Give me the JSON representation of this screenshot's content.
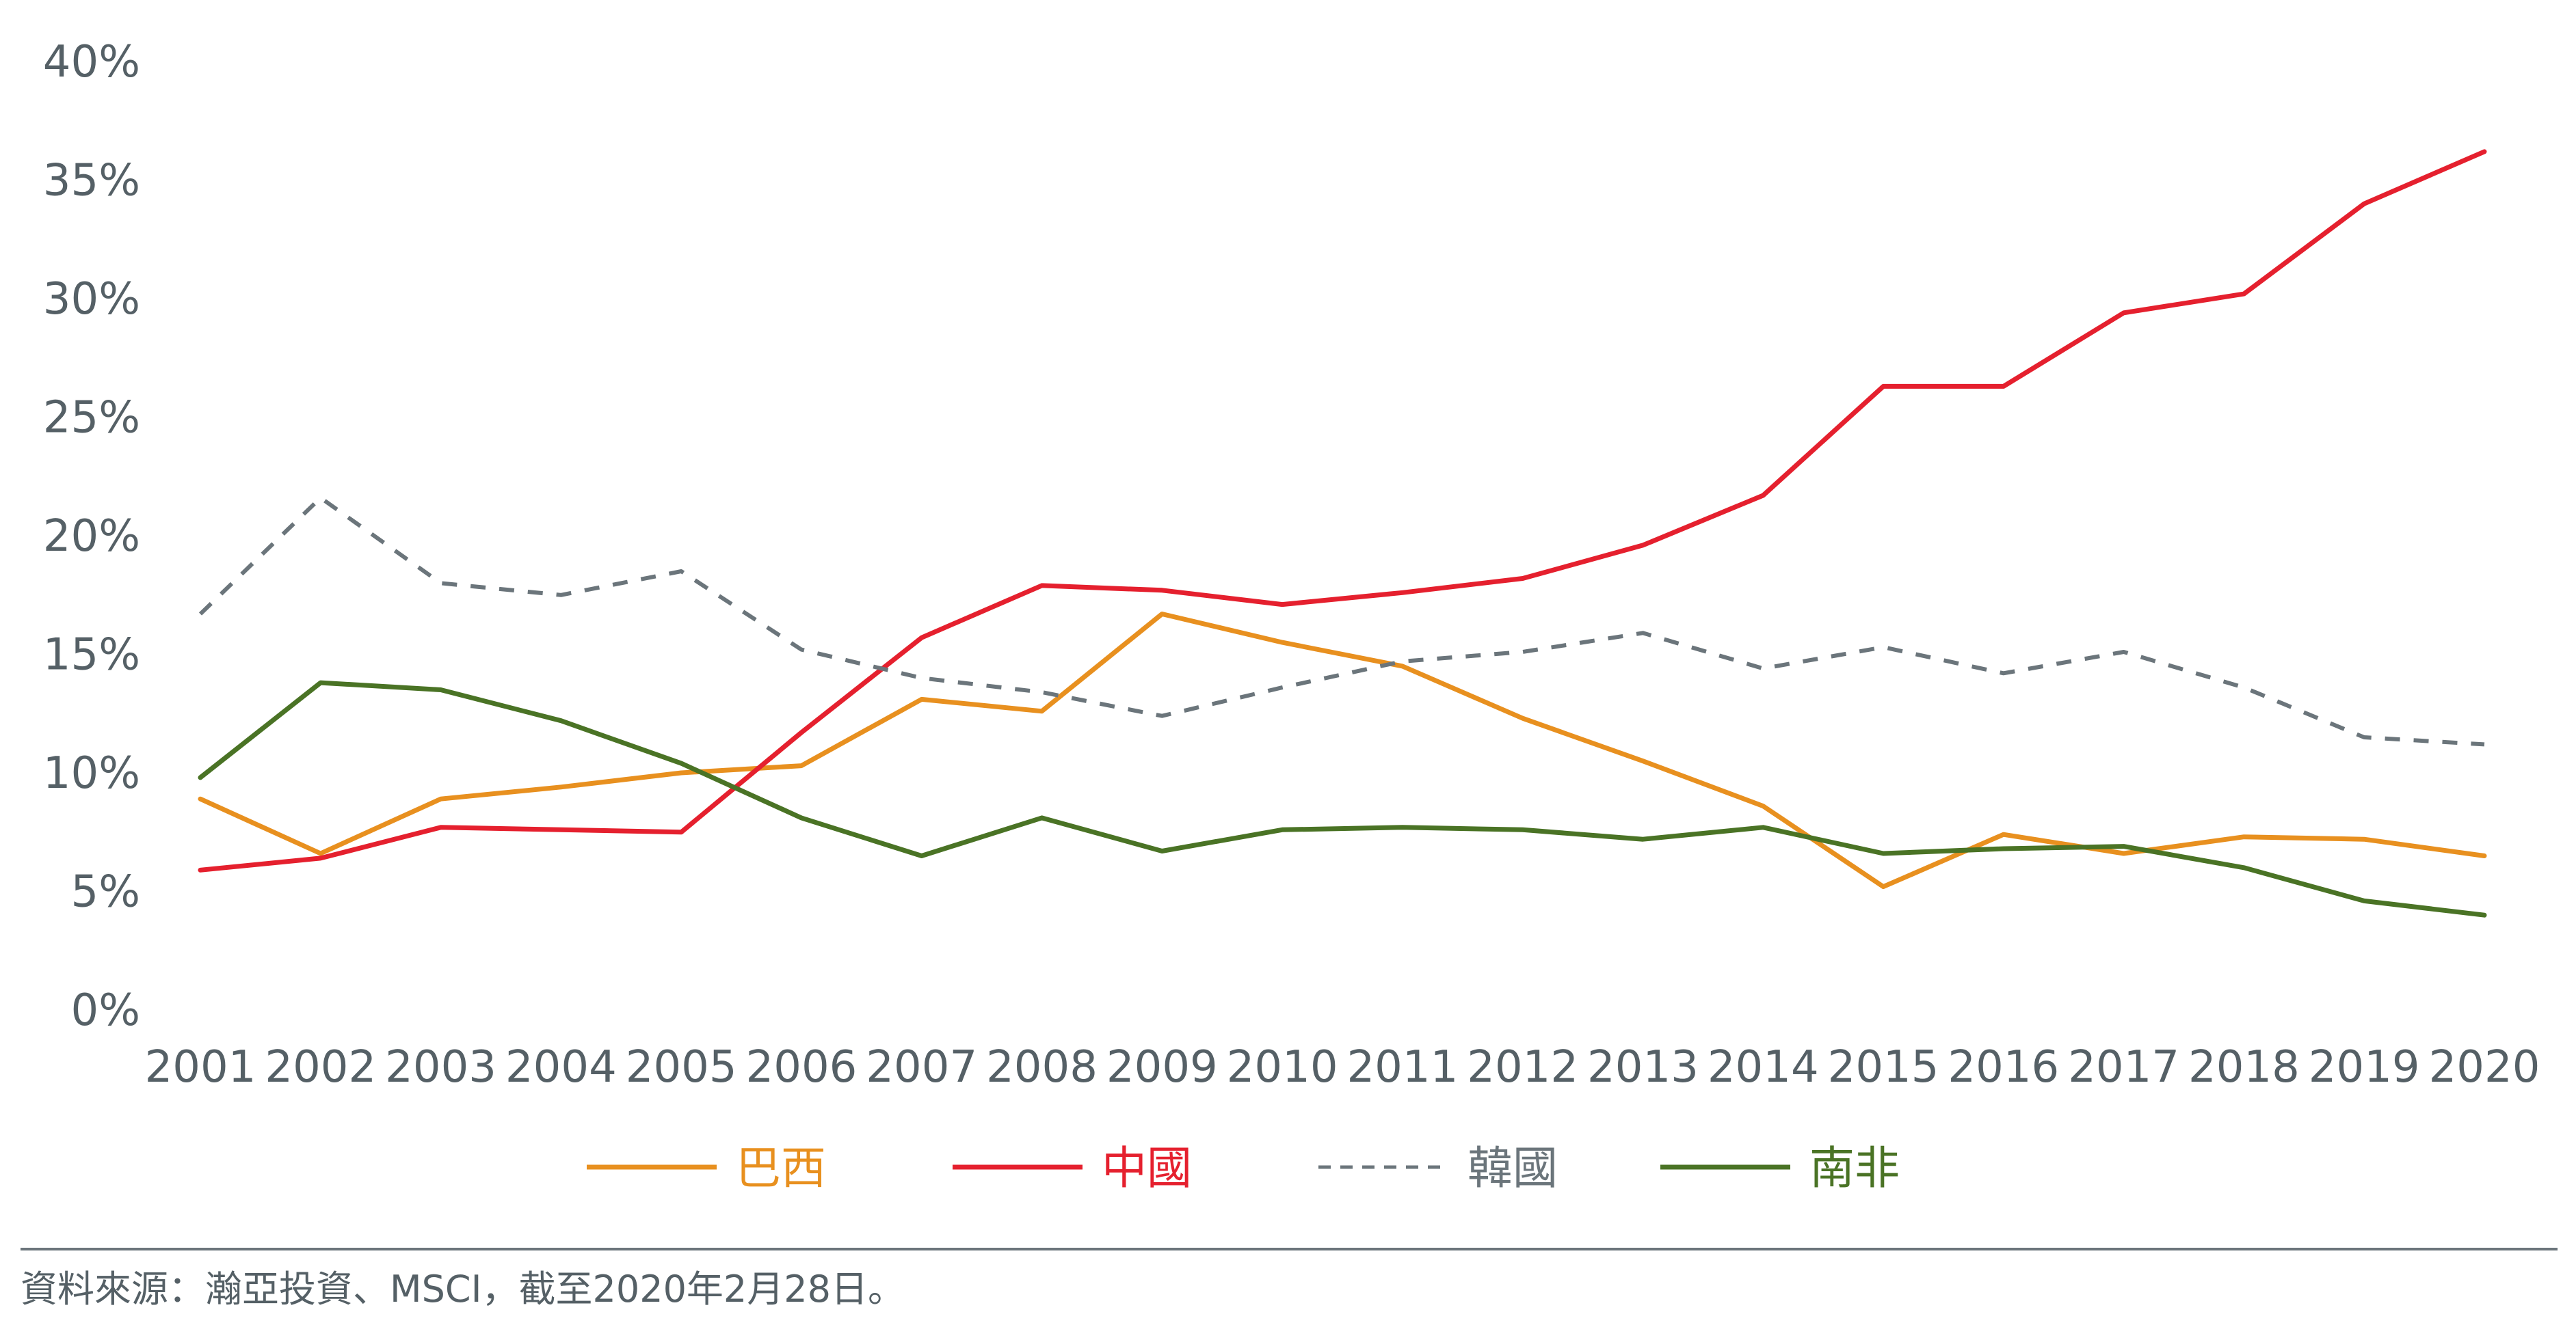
{
  "chart_data": {
    "type": "line",
    "categories": [
      "2001",
      "2002",
      "2003",
      "2004",
      "2005",
      "2006",
      "2007",
      "2008",
      "2009",
      "2010",
      "2011",
      "2012",
      "2013",
      "2014",
      "2015",
      "2016",
      "2017",
      "2018",
      "2019",
      "2020"
    ],
    "yticks": [
      "0%",
      "5%",
      "10%",
      "15%",
      "20%",
      "25%",
      "30%",
      "35%",
      "40%"
    ],
    "ylim": [
      0,
      40
    ],
    "grid": false,
    "legend_position": "bottom",
    "series": [
      {
        "name": "巴西",
        "color": "#E8901F",
        "dash": "solid",
        "values": [
          8.9,
          6.6,
          8.9,
          9.4,
          10.0,
          10.3,
          13.1,
          12.6,
          16.7,
          15.5,
          14.5,
          12.3,
          10.5,
          8.6,
          5.2,
          7.4,
          6.6,
          7.3,
          7.2,
          6.5
        ]
      },
      {
        "name": "中國",
        "color": "#E5202E",
        "dash": "solid",
        "values": [
          5.9,
          6.4,
          7.7,
          7.6,
          7.5,
          11.7,
          15.7,
          17.9,
          17.7,
          17.1,
          17.6,
          18.2,
          19.6,
          21.7,
          26.3,
          26.3,
          29.4,
          30.2,
          34.0,
          36.2
        ]
      },
      {
        "name": "韓國",
        "color": "#6B757B",
        "dash": "dashed",
        "values": [
          16.7,
          21.6,
          18.0,
          17.5,
          18.5,
          15.2,
          14.0,
          13.4,
          12.4,
          13.6,
          14.7,
          15.1,
          15.9,
          14.4,
          15.3,
          14.2,
          15.1,
          13.6,
          11.5,
          11.2
        ]
      },
      {
        "name": "南非",
        "color": "#4A7325",
        "dash": "solid",
        "values": [
          9.8,
          13.8,
          13.5,
          12.2,
          10.4,
          8.1,
          6.5,
          8.1,
          6.7,
          7.6,
          7.7,
          7.6,
          7.2,
          7.7,
          6.6,
          6.8,
          6.9,
          6.0,
          4.6,
          4.0
        ]
      }
    ]
  },
  "source_note": "資料來源：瀚亞投資、MSCI，截至2020年2月28日。",
  "divider_color": "#6B757B"
}
